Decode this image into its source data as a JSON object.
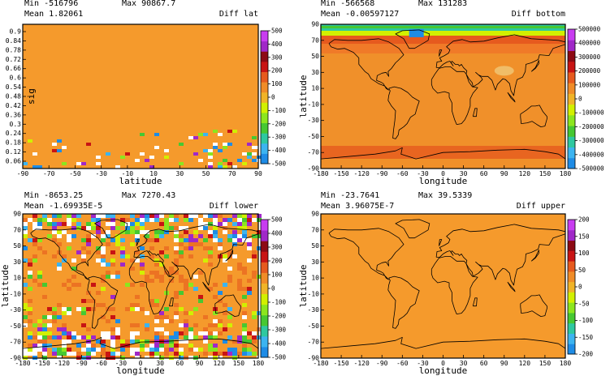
{
  "chart_data": [
    {
      "type": "heatmap",
      "stats": {
        "min_label": "Min",
        "min": "-516796",
        "max_label": "Max",
        "max": "90867.7",
        "mean_label": "Mean",
        "mean": "1.82061"
      },
      "title": "Diff lat",
      "xlabel": "latitude",
      "ylabel": "sig",
      "xticks": [
        "-90",
        "-70",
        "-50",
        "-30",
        "-10",
        "10",
        "30",
        "50",
        "70",
        "90"
      ],
      "yticks": [
        "0.06",
        "0.12",
        "0.18",
        "0.24",
        "0.3",
        "0.36",
        "0.42",
        "0.48",
        "0.54",
        "0.6",
        "0.66",
        "0.72",
        "0.78",
        "0.84",
        "0.9"
      ],
      "colorbar_ticks": [
        "-500",
        "-400",
        "-300",
        "-200",
        "-100",
        "0",
        "100",
        "200",
        "300",
        "400",
        "500"
      ],
      "base_color": "#f59a2c",
      "map": false
    },
    {
      "type": "heatmap",
      "stats": {
        "min_label": "Min",
        "min": "-566568",
        "max_label": "Max",
        "max": "131283",
        "mean_label": "Mean",
        "mean": "-0.00597127"
      },
      "title": "Diff bottom",
      "xlabel": "longitude",
      "ylabel": "latitude",
      "xticks": [
        "-180",
        "-150",
        "-120",
        "-90",
        "-60",
        "-30",
        "0",
        "30",
        "60",
        "90",
        "120",
        "150",
        "180"
      ],
      "yticks": [
        "-90",
        "-70",
        "-50",
        "-30",
        "-10",
        "10",
        "30",
        "50",
        "70",
        "90"
      ],
      "colorbar_ticks": [
        "-500000",
        "-400000",
        "-300000",
        "-200000",
        "-100000",
        "0",
        "100000",
        "200000",
        "300000",
        "400000",
        "500000"
      ],
      "base_color": "#f0902a",
      "map": true
    },
    {
      "type": "heatmap",
      "stats": {
        "min_label": "Min",
        "min": "-8653.25",
        "max_label": "Max",
        "max": "7270.43",
        "mean_label": "Mean",
        "mean": "-1.69935E-5"
      },
      "title": "Diff lower",
      "xlabel": "longitude",
      "ylabel": "latitude",
      "xticks": [
        "-180",
        "-150",
        "-120",
        "-90",
        "-60",
        "-30",
        "0",
        "30",
        "60",
        "90",
        "120",
        "150",
        "180"
      ],
      "yticks": [
        "-90",
        "-70",
        "-50",
        "-30",
        "-10",
        "10",
        "30",
        "50",
        "70",
        "90"
      ],
      "colorbar_ticks": [
        "-500",
        "-400",
        "-300",
        "-200",
        "-100",
        "0",
        "100",
        "200",
        "300",
        "400",
        "500"
      ],
      "base_color": "#f59a2c",
      "map": true
    },
    {
      "type": "heatmap",
      "stats": {
        "min_label": "Min",
        "min": "-23.7641",
        "max_label": "Max",
        "max": "39.5339",
        "mean_label": "Mean",
        "mean": "3.96075E-7"
      },
      "title": "Diff upper",
      "xlabel": "longitude",
      "ylabel": "latitude",
      "xticks": [
        "-180",
        "-150",
        "-120",
        "-90",
        "-60",
        "-30",
        "0",
        "30",
        "60",
        "90",
        "120",
        "150",
        "180"
      ],
      "yticks": [
        "-90",
        "-70",
        "-50",
        "-30",
        "-10",
        "10",
        "30",
        "50",
        "70",
        "90"
      ],
      "colorbar_ticks": [
        "-200",
        "-150",
        "-100",
        "-50",
        "0",
        "50",
        "100",
        "150",
        "200"
      ],
      "base_color": "#f59a2c",
      "map": true
    }
  ]
}
